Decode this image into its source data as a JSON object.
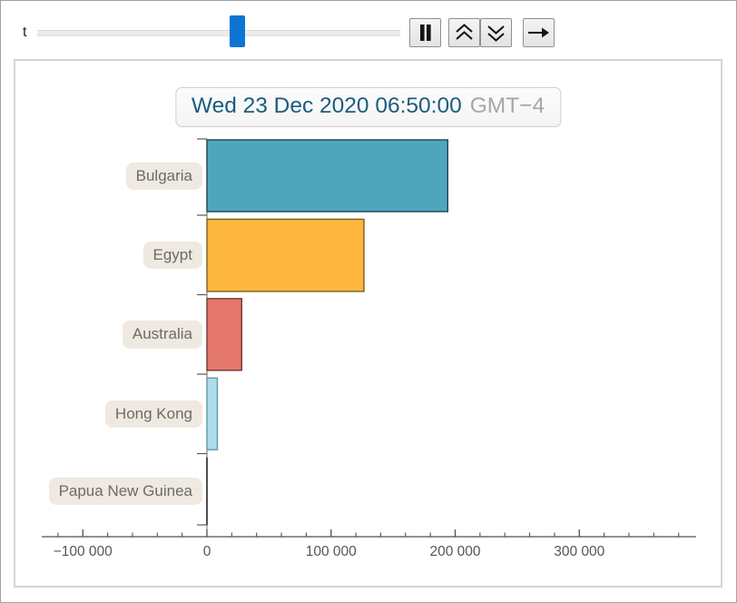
{
  "controls": {
    "variable_label": "t",
    "slider": {
      "value_percent": 55
    },
    "buttons": [
      {
        "name": "pause",
        "icon": "pause-icon"
      },
      {
        "name": "faster",
        "icon": "double-chevron-up-icon"
      },
      {
        "name": "slower",
        "icon": "double-chevron-down-icon"
      },
      {
        "name": "direction",
        "icon": "arrow-right-icon"
      }
    ]
  },
  "chart_data": {
    "type": "bar",
    "orientation": "horizontal",
    "title": "Wed 23 Dec 2020 06:50:00",
    "title_timezone": "GMT−4",
    "categories": [
      "Bulgaria",
      "Egypt",
      "Australia",
      "Hong Kong",
      "Papua New Guinea"
    ],
    "values": [
      194000,
      126500,
      28000,
      8400,
      400
    ],
    "bar_colors": [
      "#4FA6BC",
      "#FDB73E",
      "#E3776B",
      "#AFDCEA",
      "#4f4f4f"
    ],
    "bar_edge_colors": [
      "#1E4654",
      "#78601F",
      "#713A32",
      "#5B9AAD",
      "#4f4f4f"
    ],
    "xlim": [
      -133000,
      394000
    ],
    "x_major_ticks": [
      -100000,
      0,
      100000,
      200000,
      300000
    ],
    "x_major_tick_labels": [
      "−100 000",
      "0",
      "100 000",
      "200 000",
      "300 000"
    ],
    "x_minor_tick_step": 20000,
    "ylabel": "",
    "xlabel": "",
    "grid": false,
    "legend": false,
    "axis_color": "#4f4f4f",
    "tick_label_color": "#555555"
  }
}
